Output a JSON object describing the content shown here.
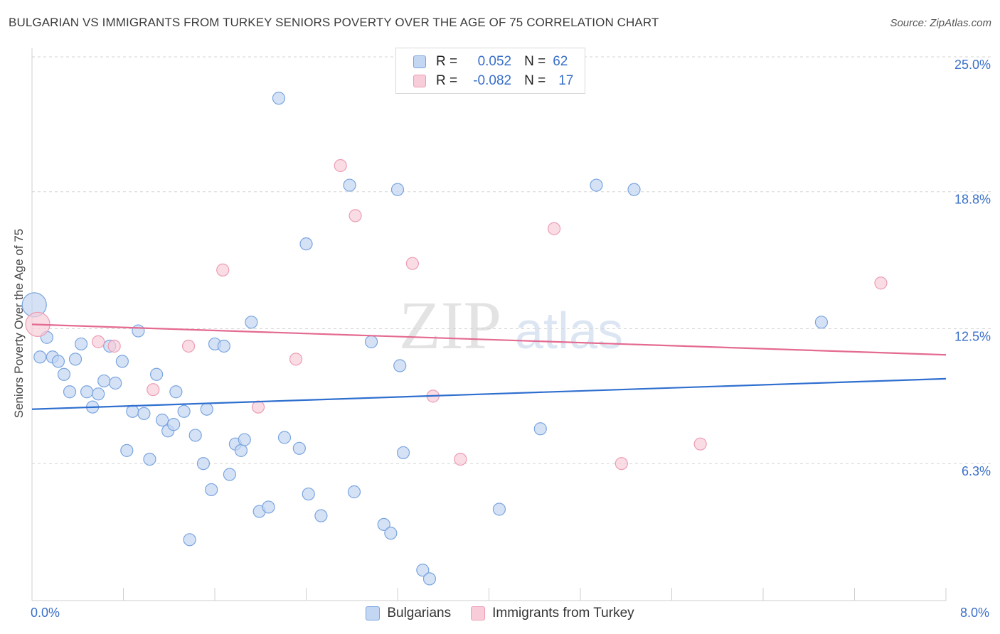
{
  "title": "BULGARIAN VS IMMIGRANTS FROM TURKEY SENIORS POVERTY OVER THE AGE OF 75 CORRELATION CHART",
  "source": "Source: ZipAtlas.com",
  "watermark": {
    "zip": "ZIP",
    "atlas": "atlas"
  },
  "legend": {
    "rows": [
      {
        "r_label": "R =",
        "r_value": "0.052",
        "n_label": "N =",
        "n_value": "62"
      },
      {
        "r_label": "R =",
        "r_value": "-0.082",
        "n_label": "N =",
        "n_value": "17"
      }
    ]
  },
  "bottom_legend": [
    "Bulgarians",
    "Immigrants from Turkey"
  ],
  "colors": {
    "blue_fill": "#c3d6f2",
    "blue_stroke": "#7aa5df",
    "blue_line": "#2f6fcf",
    "pink_fill": "#f8cdd9",
    "pink_stroke": "#ec9db4",
    "pink_line": "#e46a90",
    "tick_text": "#3a6fc9",
    "grid": "#d5d5d5"
  },
  "chart_data": {
    "type": "scatter",
    "title": "BULGARIAN VS IMMIGRANTS FROM TURKEY SENIORS POVERTY OVER THE AGE OF 75 CORRELATION CHART",
    "xlabel": "",
    "ylabel": "Seniors Poverty Over the Age of 75",
    "xlim": [
      0,
      8.0
    ],
    "ylim": [
      0,
      25.0
    ],
    "x_tick_labels": [
      "0.0%",
      "8.0%"
    ],
    "y_ticks": [
      6.3,
      12.5,
      18.8,
      25.0
    ],
    "y_tick_labels": [
      "6.3%",
      "12.5%",
      "18.8%",
      "25.0%"
    ],
    "grid": "horizontal dashed",
    "series": [
      {
        "name": "Bulgarians",
        "color": "#7aa5df",
        "r": 0.052,
        "n": 62,
        "trend": {
          "x": [
            0,
            8.0
          ],
          "y": [
            8.8,
            10.2
          ]
        },
        "points": [
          [
            0.02,
            13.6,
            "big"
          ],
          [
            0.07,
            11.2
          ],
          [
            0.13,
            12.1
          ],
          [
            0.18,
            11.2
          ],
          [
            0.23,
            11.0
          ],
          [
            0.28,
            10.4
          ],
          [
            0.33,
            9.6
          ],
          [
            0.38,
            11.1
          ],
          [
            0.43,
            11.8
          ],
          [
            0.48,
            9.6
          ],
          [
            0.53,
            8.9
          ],
          [
            0.58,
            9.5
          ],
          [
            0.63,
            10.1
          ],
          [
            0.68,
            11.7
          ],
          [
            0.73,
            10.0
          ],
          [
            0.79,
            11.0
          ],
          [
            0.83,
            6.9
          ],
          [
            0.88,
            8.7
          ],
          [
            0.93,
            12.4
          ],
          [
            0.98,
            8.6
          ],
          [
            1.03,
            6.5
          ],
          [
            1.09,
            10.4
          ],
          [
            1.14,
            8.3
          ],
          [
            1.19,
            7.8
          ],
          [
            1.24,
            8.1
          ],
          [
            1.26,
            9.6
          ],
          [
            1.33,
            8.7
          ],
          [
            1.38,
            2.8
          ],
          [
            1.43,
            7.6
          ],
          [
            1.5,
            6.3
          ],
          [
            1.53,
            8.8
          ],
          [
            1.57,
            5.1
          ],
          [
            1.6,
            11.8
          ],
          [
            1.68,
            11.7
          ],
          [
            1.73,
            5.8
          ],
          [
            1.78,
            7.2
          ],
          [
            1.83,
            6.9
          ],
          [
            1.86,
            7.4
          ],
          [
            1.92,
            12.8
          ],
          [
            1.99,
            4.1
          ],
          [
            2.07,
            4.3
          ],
          [
            2.16,
            23.1
          ],
          [
            2.21,
            7.5
          ],
          [
            2.34,
            7.0
          ],
          [
            2.4,
            16.4
          ],
          [
            2.42,
            4.9
          ],
          [
            2.53,
            3.9
          ],
          [
            2.78,
            19.1
          ],
          [
            2.82,
            5.0
          ],
          [
            2.97,
            11.9
          ],
          [
            3.08,
            3.5
          ],
          [
            3.14,
            3.1
          ],
          [
            3.2,
            18.9
          ],
          [
            3.22,
            10.8
          ],
          [
            3.25,
            6.8
          ],
          [
            3.42,
            1.4
          ],
          [
            3.48,
            1.0
          ],
          [
            4.09,
            4.2
          ],
          [
            4.45,
            7.9
          ],
          [
            4.94,
            19.1
          ],
          [
            5.27,
            18.9
          ],
          [
            6.91,
            12.8
          ]
        ]
      },
      {
        "name": "Immigrants from Turkey",
        "color": "#ec9db4",
        "r": -0.082,
        "n": 17,
        "trend": {
          "x": [
            0,
            8.0
          ],
          "y": [
            12.7,
            11.3
          ]
        },
        "points": [
          [
            0.05,
            12.7,
            "big"
          ],
          [
            0.58,
            11.9
          ],
          [
            1.06,
            9.7
          ],
          [
            1.37,
            11.7
          ],
          [
            1.67,
            15.2
          ],
          [
            1.98,
            8.9
          ],
          [
            2.31,
            11.1
          ],
          [
            2.7,
            20.0
          ],
          [
            2.83,
            17.7
          ],
          [
            3.33,
            15.5
          ],
          [
            3.51,
            9.4
          ],
          [
            3.75,
            6.5
          ],
          [
            4.57,
            17.1
          ],
          [
            5.16,
            6.3
          ],
          [
            5.85,
            7.2
          ],
          [
            7.43,
            14.6
          ],
          [
            0.72,
            11.7
          ]
        ]
      }
    ]
  }
}
